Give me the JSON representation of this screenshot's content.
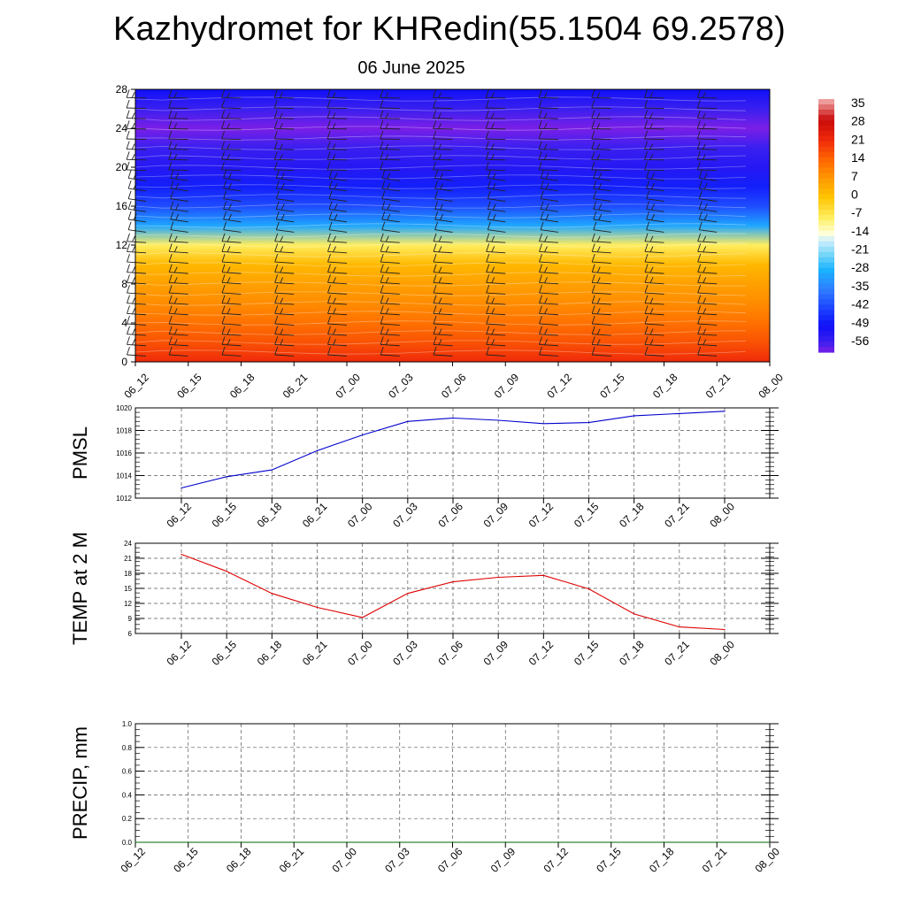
{
  "header": {
    "title": "Kazhydromet for KHRedin(55.1504 69.2578)",
    "subtitle": "06 June 2025"
  },
  "colors": {
    "pmsl_line": "#0000cc",
    "temp_line": "#dd0000",
    "precip_line": "#006600"
  },
  "chart_data": [
    {
      "type": "heatmap",
      "title": "",
      "x_ticks": [
        "06_12",
        "06_15",
        "06_18",
        "06_21",
        "07_00",
        "07_03",
        "07_06",
        "07_09",
        "07_12",
        "07_15",
        "07_18",
        "07_21",
        "08_00"
      ],
      "y_ticks": [
        "0",
        "4",
        "8",
        "12",
        "16",
        "20",
        "24",
        "28"
      ],
      "ylim": [
        0,
        28
      ],
      "colorbar_labels": [
        "35",
        "28",
        "21",
        "14",
        "7",
        "0",
        "-7",
        "-14",
        "-21",
        "-28",
        "-35",
        "-42",
        "-49",
        "-56"
      ],
      "colorbar_range": [
        -60,
        38
      ],
      "levels_y": [
        0,
        2,
        4,
        6,
        8,
        10,
        12,
        14,
        16,
        18,
        20,
        22,
        24,
        26,
        28
      ],
      "temperature_profile": [
        22,
        17,
        13,
        9,
        6,
        2,
        -8,
        -30,
        -42,
        -48,
        -53,
        -56,
        -60,
        -56,
        -50
      ],
      "overlay": "wind barbs"
    },
    {
      "type": "line",
      "ylabel": "PMSL",
      "ylim": [
        1012,
        1020
      ],
      "y_ticks": [
        "1012",
        "1014",
        "1016",
        "1018",
        "1020"
      ],
      "categories": [
        "06_12",
        "06_15",
        "06_18",
        "06_21",
        "07_00",
        "07_03",
        "07_06",
        "07_09",
        "07_12",
        "07_15",
        "07_18",
        "07_21",
        "08_00"
      ],
      "values": [
        1012.9,
        1013.9,
        1014.5,
        1016.2,
        1017.6,
        1018.8,
        1019.1,
        1018.9,
        1018.6,
        1018.7,
        1019.3,
        1019.5,
        1019.7
      ]
    },
    {
      "type": "line",
      "ylabel": "TEMP at 2 M",
      "ylim": [
        6,
        24
      ],
      "y_ticks": [
        "6",
        "9",
        "12",
        "15",
        "18",
        "21",
        "24"
      ],
      "categories": [
        "06_12",
        "06_15",
        "06_18",
        "06_21",
        "07_00",
        "07_03",
        "07_06",
        "07_09",
        "07_12",
        "07_15",
        "07_18",
        "07_21",
        "08_00"
      ],
      "values": [
        21.8,
        18.4,
        14.0,
        11.2,
        9.2,
        14.0,
        16.3,
        17.2,
        17.6,
        14.9,
        9.9,
        7.3,
        6.8
      ]
    },
    {
      "type": "line",
      "ylabel": "PRECIP, mm",
      "ylim": [
        0,
        1
      ],
      "y_ticks": [
        "0.0",
        "0.2",
        "0.4",
        "0.6",
        "0.8",
        "1.0"
      ],
      "categories": [
        "06_12",
        "06_15",
        "06_18",
        "06_21",
        "07_00",
        "07_03",
        "07_06",
        "07_09",
        "07_12",
        "07_15",
        "07_18",
        "07_21",
        "08_00"
      ],
      "values": [
        0,
        0,
        0,
        0,
        0,
        0,
        0,
        0,
        0,
        0,
        0,
        0,
        0
      ]
    }
  ]
}
